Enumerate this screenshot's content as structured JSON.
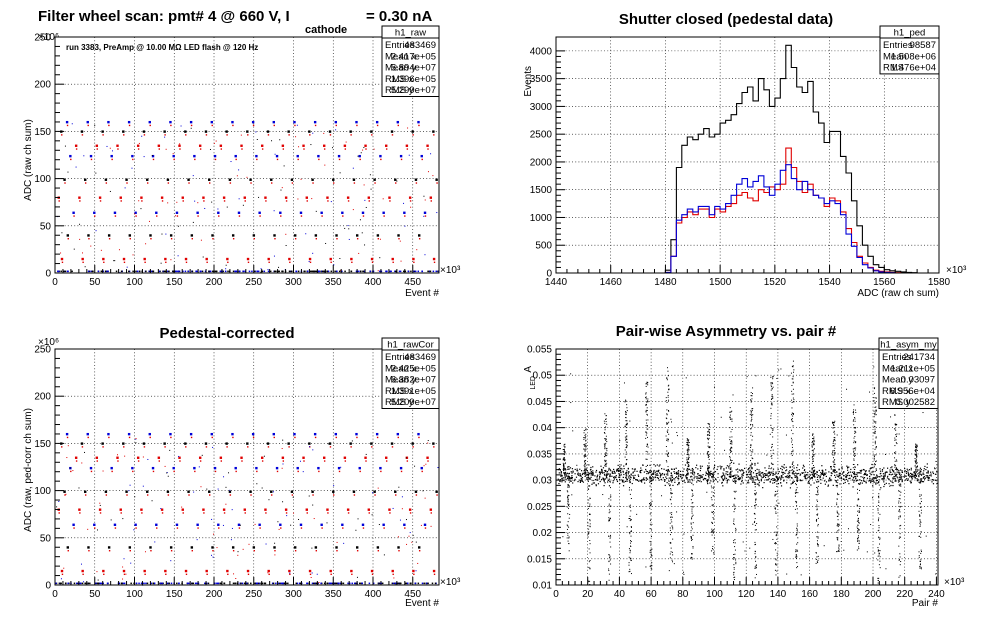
{
  "colors": {
    "black": "#000000",
    "red": "#e00000",
    "blue": "#0000d8"
  },
  "chart_data": [
    {
      "id": "raw",
      "type": "scatter",
      "title": "Filter wheel scan: pmt#   4 @   660 V, I",
      "title_subscript": "cathode",
      "title_tail": "= 0.30 nA",
      "annotation": "run 3383, PreAmp @ 10.00 MΩ LED flash @  120 Hz",
      "xlabel": "Event #",
      "ylabel": "ADC (raw ch sum)",
      "x_multiplier": "×10³",
      "y_multiplier": "×10⁶",
      "xlim": [
        0,
        483
      ],
      "ylim": [
        0,
        250
      ],
      "xticks": [
        0,
        50,
        100,
        150,
        200,
        250,
        300,
        350,
        400,
        450
      ],
      "yticks": [
        0,
        50,
        100,
        150,
        200,
        250
      ],
      "grid": true,
      "levels": [
        1.5,
        15,
        40,
        64,
        80,
        99,
        124,
        135,
        150,
        160
      ],
      "stats": {
        "name": "h1_raw",
        "rows": [
          {
            "label": "Entries",
            "value": "483469"
          },
          {
            "label": "Mean x",
            "value": "2.417e+05"
          },
          {
            "label": "Mean y",
            "value": "5.894e+07"
          },
          {
            "label": "RMS x",
            "value": "1.396e+05"
          },
          {
            "label": "RMS y",
            "value": "5.299e+07"
          }
        ]
      }
    },
    {
      "id": "ped",
      "type": "line",
      "title": "Shutter closed (pedestal data)",
      "xlabel": "ADC (raw ch sum)",
      "ylabel": "Events",
      "x_multiplier": "×10³",
      "xlim": [
        1440,
        1580
      ],
      "ylim": [
        0,
        4250
      ],
      "xticks": [
        1440,
        1460,
        1480,
        1500,
        1520,
        1540,
        1560,
        1580
      ],
      "yticks": [
        0,
        500,
        1000,
        1500,
        2000,
        2500,
        3000,
        3500,
        4000
      ],
      "grid": true,
      "bin_start": 1440,
      "bin_width": 2,
      "series": [
        {
          "color": "black",
          "values": [
            0,
            0,
            0,
            0,
            0,
            0,
            0,
            0,
            0,
            0,
            0,
            0,
            0,
            0,
            0,
            0,
            0,
            0,
            0,
            0,
            50,
            600,
            1900,
            2300,
            2450,
            2400,
            2500,
            2600,
            2450,
            2500,
            2700,
            2750,
            2850,
            3050,
            3250,
            3350,
            3100,
            3500,
            3300,
            3000,
            3150,
            3500,
            4100,
            3700,
            3350,
            3250,
            3450,
            2900,
            2700,
            2350,
            2550,
            2550,
            2100,
            1800,
            1300,
            850,
            500,
            300,
            150,
            100,
            60,
            40,
            30,
            20,
            10,
            5,
            0,
            0,
            0,
            0
          ]
        },
        {
          "color": "red",
          "values": [
            0,
            0,
            0,
            0,
            0,
            0,
            0,
            0,
            0,
            0,
            0,
            0,
            0,
            0,
            0,
            0,
            0,
            0,
            0,
            0,
            10,
            300,
            900,
            1000,
            1100,
            1050,
            1150,
            1150,
            1000,
            1150,
            1100,
            1200,
            1250,
            1400,
            1450,
            1350,
            1300,
            1500,
            1450,
            1550,
            1500,
            1600,
            2250,
            1900,
            1650,
            1450,
            1600,
            1400,
            1350,
            1200,
            1350,
            1300,
            1100,
            800,
            550,
            300,
            180,
            100,
            50,
            30,
            20,
            10,
            5,
            0,
            0,
            0,
            0,
            0,
            0,
            0
          ]
        },
        {
          "color": "blue",
          "values": [
            0,
            0,
            0,
            0,
            0,
            0,
            0,
            0,
            0,
            0,
            0,
            0,
            0,
            0,
            0,
            0,
            0,
            0,
            0,
            0,
            10,
            300,
            950,
            1050,
            1150,
            1100,
            1200,
            1200,
            1050,
            1200,
            1150,
            1250,
            1400,
            1600,
            1700,
            1550,
            1650,
            1750,
            1550,
            1400,
            1600,
            1850,
            1950,
            1700,
            1500,
            1650,
            1500,
            1400,
            1350,
            1250,
            1300,
            1250,
            1050,
            700,
            480,
            280,
            150,
            90,
            40,
            20,
            10,
            5,
            0,
            0,
            0,
            0,
            0,
            0,
            0,
            0
          ]
        }
      ],
      "stats": {
        "name": "h1_ped",
        "rows": [
          {
            "label": "Entries",
            "value": "98587"
          },
          {
            "label": "Mean",
            "value": "1.508e+06"
          },
          {
            "label": "RMS",
            "value": "1.476e+04"
          }
        ]
      }
    },
    {
      "id": "rawcor",
      "type": "scatter",
      "title": "Pedestal-corrected",
      "xlabel": "Event #",
      "ylabel": "ADC (raw, ped-corr ch sum)",
      "x_multiplier": "×10³",
      "y_multiplier": "×10⁶",
      "xlim": [
        0,
        483
      ],
      "ylim": [
        0,
        250
      ],
      "xticks": [
        0,
        50,
        100,
        150,
        200,
        250,
        300,
        350,
        400,
        450
      ],
      "yticks": [
        0,
        50,
        100,
        150,
        200,
        250
      ],
      "grid": true,
      "levels": [
        1.5,
        15,
        40,
        64,
        80,
        99,
        124,
        135,
        150,
        160
      ],
      "stats": {
        "name": "h1_rawCor",
        "rows": [
          {
            "label": "Entries",
            "value": "483469"
          },
          {
            "label": "Mean x",
            "value": "2.425e+05"
          },
          {
            "label": "Mean y",
            "value": "6.382e+07"
          },
          {
            "label": "RMS x",
            "value": "1.391e+05"
          },
          {
            "label": "RMS y",
            "value": "5.209e+07"
          }
        ]
      }
    },
    {
      "id": "asym",
      "type": "scatter",
      "title": "Pair-wise Asymmetry vs. pair #",
      "xlabel": "Pair #",
      "ylabel": "A",
      "ylabel_sub": "LED",
      "x_multiplier": "×10³",
      "xlim": [
        0,
        241
      ],
      "ylim": [
        0.01,
        0.055
      ],
      "xticks": [
        0,
        20,
        40,
        60,
        80,
        100,
        120,
        140,
        160,
        180,
        200,
        220,
        240
      ],
      "yticks": [
        0.01,
        0.015,
        0.02,
        0.025,
        0.03,
        0.035,
        0.04,
        0.045,
        0.05,
        0.055
      ],
      "grid": true,
      "band_center": 0.031,
      "spike_positions": [
        5,
        18,
        31,
        44,
        57,
        70,
        83,
        96,
        110,
        123,
        136,
        149,
        162,
        175,
        188,
        201,
        214,
        227
      ],
      "stats": {
        "name": "h1_asym_my",
        "rows": [
          {
            "label": "Entries",
            "value": "241734"
          },
          {
            "label": "Mean x",
            "value": "1.211e+05"
          },
          {
            "label": "Mean y",
            "value": "0.03097"
          },
          {
            "label": "RMS x",
            "value": "6.956e+04"
          },
          {
            "label": "RMS y",
            "value": "0.002582"
          }
        ]
      }
    }
  ]
}
